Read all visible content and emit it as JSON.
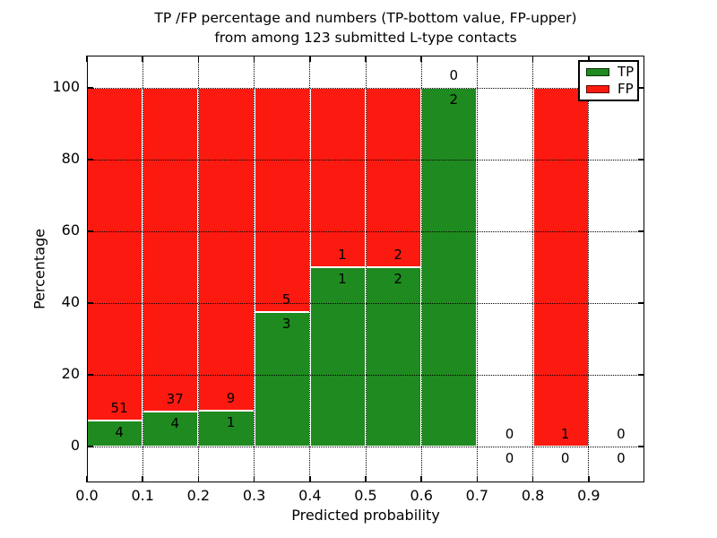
{
  "chart_data": {
    "type": "bar",
    "stacked": true,
    "units": "percent",
    "title_line1": "TP /FP percentage and numbers (TP-bottom value, FP-upper)",
    "title_line2": "from among 123 submitted L-type contacts",
    "total_contacts": 123,
    "xlabel": "Predicted probability",
    "ylabel": "Percentage",
    "xlim": [
      0.0,
      1.0
    ],
    "ylim": [
      -10,
      109
    ],
    "xticks": [
      "0.0",
      "0.1",
      "0.2",
      "0.3",
      "0.4",
      "0.5",
      "0.6",
      "0.7",
      "0.8",
      "0.9"
    ],
    "yticks": [
      "0",
      "20",
      "40",
      "60",
      "80",
      "100"
    ],
    "grid": "dotted",
    "colors": {
      "tp": "#1f8a1f",
      "fp": "#fc1a10",
      "bar_edge": "#ffffff",
      "grid": "#000000"
    },
    "legend": {
      "location": "upper right",
      "entries": [
        {
          "label": "TP",
          "color": "#1f8a1f"
        },
        {
          "label": "FP",
          "color": "#fc1a10"
        }
      ]
    },
    "bins": [
      {
        "x_range": [
          0.0,
          0.1
        ],
        "tp": 4,
        "fp": 51,
        "tp_pct": 7.3
      },
      {
        "x_range": [
          0.1,
          0.2
        ],
        "tp": 4,
        "fp": 37,
        "tp_pct": 9.8
      },
      {
        "x_range": [
          0.2,
          0.3
        ],
        "tp": 1,
        "fp": 9,
        "tp_pct": 10.0
      },
      {
        "x_range": [
          0.3,
          0.4
        ],
        "tp": 3,
        "fp": 5,
        "tp_pct": 37.5
      },
      {
        "x_range": [
          0.4,
          0.5
        ],
        "tp": 1,
        "fp": 1,
        "tp_pct": 50.0
      },
      {
        "x_range": [
          0.5,
          0.6
        ],
        "tp": 2,
        "fp": 2,
        "tp_pct": 50.0
      },
      {
        "x_range": [
          0.6,
          0.7
        ],
        "tp": 2,
        "fp": 0,
        "tp_pct": 100.0
      },
      {
        "x_range": [
          0.7,
          0.8
        ],
        "tp": 0,
        "fp": 0,
        "tp_pct": null
      },
      {
        "x_range": [
          0.8,
          0.9
        ],
        "tp": 0,
        "fp": 1,
        "tp_pct": 0.0
      },
      {
        "x_range": [
          0.9,
          1.0
        ],
        "tp": 0,
        "fp": 0,
        "tp_pct": null
      }
    ]
  }
}
